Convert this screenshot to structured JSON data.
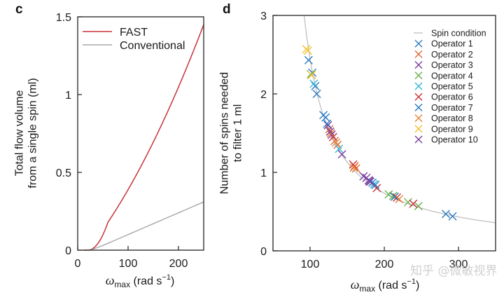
{
  "chart_data": [
    {
      "panel": "c",
      "type": "line",
      "title": "",
      "xlabel": "ω_max (rad s⁻¹)",
      "xlabel_parts": {
        "symbol": "ω",
        "sub": "max",
        "unit": " (rad s",
        "sup": "−1",
        "close": ")"
      },
      "ylabel_lines": [
        "Total flow volume",
        "from a single spin (ml)"
      ],
      "xlim": [
        0,
        250
      ],
      "ylim": [
        0,
        1.5
      ],
      "xticks": [
        0,
        100,
        200
      ],
      "xtick_labels": [
        "0",
        "100",
        "200"
      ],
      "yticks": [
        0,
        0.5,
        1,
        1.5
      ],
      "ytick_labels": [
        "0",
        "0.5",
        "1",
        "1.5"
      ],
      "legend_position": "top-left",
      "series": [
        {
          "name": "FAST",
          "color": "#c8323c",
          "x": [
            20,
            30,
            40,
            50,
            60,
            70,
            80,
            90,
            100,
            110,
            120,
            130,
            140,
            150,
            160,
            170,
            180,
            190,
            200,
            210,
            220,
            230,
            240,
            250
          ],
          "y": [
            0,
            0.01,
            0.03,
            0.06,
            0.1,
            0.15,
            0.2,
            0.26,
            0.32,
            0.38,
            0.44,
            0.5,
            0.57,
            0.63,
            0.7,
            0.77,
            0.84,
            0.92,
            0.99,
            1.07,
            1.14,
            1.22,
            1.29,
            1.45
          ]
        },
        {
          "name": "Conventional",
          "color": "#a8a8a8",
          "x": [
            25,
            50,
            100,
            150,
            200,
            250
          ],
          "y": [
            0,
            0.03,
            0.1,
            0.17,
            0.24,
            0.31
          ]
        }
      ]
    },
    {
      "panel": "d",
      "type": "scatter",
      "title": "",
      "xlabel": "ω_max (rad s⁻¹)",
      "xlabel_parts": {
        "symbol": "ω",
        "sub": "max",
        "unit": " (rad s",
        "sup": "−1",
        "close": ")"
      },
      "ylabel_lines": [
        "Number of spins needed",
        "to filter 1 ml"
      ],
      "xlim": [
        50,
        350
      ],
      "ylim": [
        0,
        3
      ],
      "xticks": [
        100,
        200,
        300
      ],
      "xtick_labels": [
        "100",
        "200",
        "300"
      ],
      "yticks": [
        0,
        1,
        2,
        3
      ],
      "ytick_labels": [
        "0",
        "1",
        "2",
        "3"
      ],
      "legend_position": "top-right",
      "curve": {
        "name": "Spin condition",
        "color": "#c0c0c0",
        "x": [
          92,
          95,
          100,
          110,
          120,
          130,
          140,
          150,
          160,
          170,
          180,
          190,
          200,
          220,
          240,
          260,
          280,
          300,
          320,
          350
        ],
        "y": [
          3.0,
          2.76,
          2.44,
          1.98,
          1.67,
          1.44,
          1.26,
          1.13,
          1.02,
          0.93,
          0.85,
          0.79,
          0.73,
          0.64,
          0.57,
          0.52,
          0.47,
          0.43,
          0.4,
          0.36
        ]
      },
      "series": [
        {
          "name": "Operator 1",
          "color": "#2f7bbf",
          "x": [
            98,
            103,
            107,
            109,
            121,
            283,
            292
          ],
          "y": [
            2.43,
            2.27,
            2.1,
            2.0,
            1.7,
            0.47,
            0.44
          ]
        },
        {
          "name": "Operator 2",
          "color": "#e06a3a",
          "x": [
            126,
            133,
            137,
            160,
            162
          ],
          "y": [
            1.55,
            1.4,
            1.35,
            1.08,
            1.05
          ]
        },
        {
          "name": "Operator 3",
          "color": "#7b3fa0",
          "x": [
            124,
            129,
            176,
            179,
            181
          ],
          "y": [
            1.6,
            1.48,
            0.93,
            0.9,
            0.88
          ]
        },
        {
          "name": "Operator 4",
          "color": "#6ab04c",
          "x": [
            101,
            206,
            212,
            232,
            246
          ],
          "y": [
            2.25,
            0.72,
            0.7,
            0.62,
            0.57
          ]
        },
        {
          "name": "Operator 5",
          "color": "#35b5d9",
          "x": [
            105,
            139,
            186
          ],
          "y": [
            2.13,
            1.3,
            0.85
          ]
        },
        {
          "name": "Operator 6",
          "color": "#c8323c",
          "x": [
            131,
            158,
            190,
            217,
            239
          ],
          "y": [
            1.45,
            1.1,
            0.8,
            0.68,
            0.6
          ]
        },
        {
          "name": "Operator 7",
          "color": "#2778c4",
          "x": [
            118,
            123,
            184,
            188,
            214
          ],
          "y": [
            1.73,
            1.62,
            0.87,
            0.84,
            0.69
          ]
        },
        {
          "name": "Operator 8",
          "color": "#e8833a",
          "x": [
            128,
            135,
            159,
            220
          ],
          "y": [
            1.5,
            1.38,
            1.06,
            0.66
          ]
        },
        {
          "name": "Operator 9",
          "color": "#f2c12e",
          "x": [
            95,
            97,
            102
          ],
          "y": [
            2.57,
            2.55,
            2.24
          ]
        },
        {
          "name": "Operator 10",
          "color": "#7b3fa0",
          "x": [
            127,
            143,
            172,
            180
          ],
          "y": [
            1.52,
            1.23,
            0.95,
            0.89
          ]
        }
      ]
    }
  ],
  "watermark": "知乎 @微敏视界"
}
